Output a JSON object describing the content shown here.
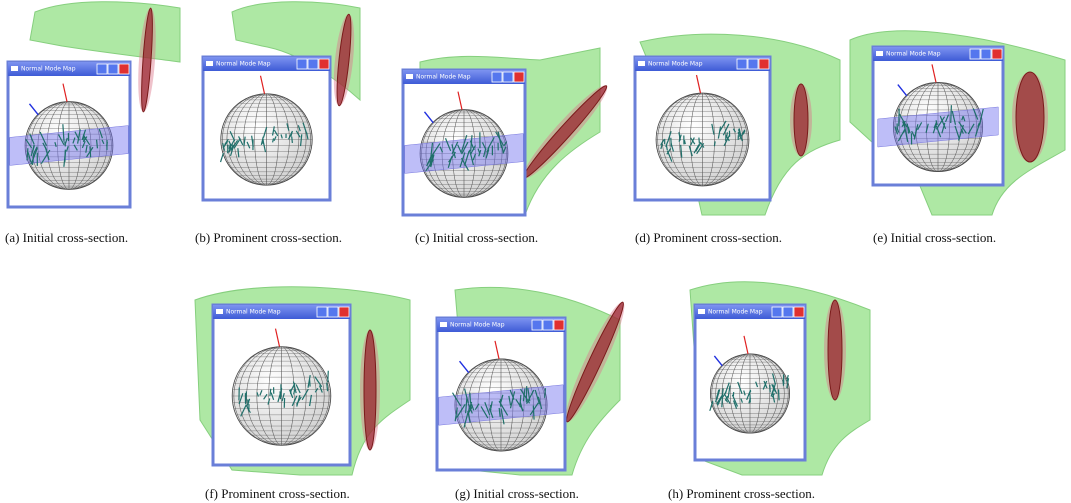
{
  "panels": [
    {
      "caption": "(a) Initial cross-section.",
      "window_title": "Normal Mode Map"
    },
    {
      "caption": "(b) Prominent cross-section.",
      "window_title": "Normal Mode Map"
    },
    {
      "caption": "(c) Initial cross-section.",
      "window_title": "Normal Mode Map"
    },
    {
      "caption": "(d) Prominent cross-section.",
      "window_title": "Normal Mode Map"
    },
    {
      "caption": "(e) Initial cross-section.",
      "window_title": "Normal Mode Map"
    },
    {
      "caption": "(f) Prominent cross-section.",
      "window_title": "Normal Mode Map"
    },
    {
      "caption": "(g) Initial cross-section.",
      "window_title": "Normal Mode Map"
    },
    {
      "caption": "(h) Prominent cross-section.",
      "window_title": "Normal Mode Map"
    }
  ]
}
